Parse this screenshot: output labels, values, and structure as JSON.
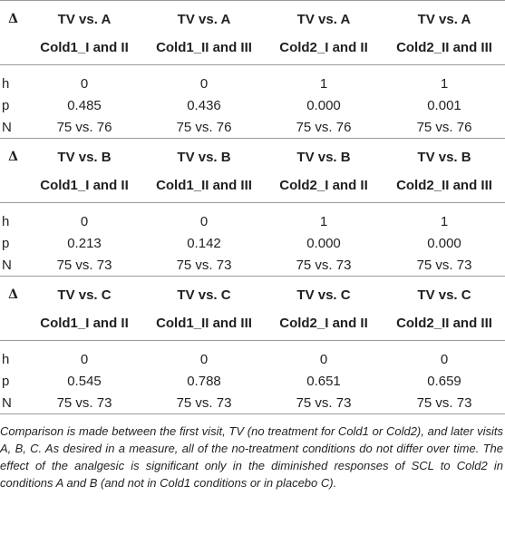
{
  "sections": [
    {
      "symbol": "Δ",
      "headers": [
        [
          "TV vs. A",
          "Cold1_I and II"
        ],
        [
          "TV vs. A",
          "Cold1_II and III"
        ],
        [
          "TV vs. A",
          "Cold2_I and II"
        ],
        [
          "TV vs. A",
          "Cold2_II and III"
        ]
      ],
      "rows": [
        {
          "label": "h",
          "values": [
            "0",
            "0",
            "1",
            "1"
          ]
        },
        {
          "label": "p",
          "values": [
            "0.485",
            "0.436",
            "0.000",
            "0.001"
          ]
        },
        {
          "label": "N",
          "values": [
            "75 vs. 76",
            "75 vs. 76",
            "75 vs. 76",
            "75 vs. 76"
          ]
        }
      ]
    },
    {
      "symbol": "Δ",
      "headers": [
        [
          "TV vs. B",
          "Cold1_I and II"
        ],
        [
          "TV vs. B",
          "Cold1_II and III"
        ],
        [
          "TV vs. B",
          "Cold2_I and II"
        ],
        [
          "TV vs. B",
          "Cold2_II and III"
        ]
      ],
      "rows": [
        {
          "label": "h",
          "values": [
            "0",
            "0",
            "1",
            "1"
          ]
        },
        {
          "label": "p",
          "values": [
            "0.213",
            "0.142",
            "0.000",
            "0.000"
          ]
        },
        {
          "label": "N",
          "values": [
            "75 vs. 73",
            "75 vs. 73",
            "75 vs. 73",
            "75 vs. 73"
          ]
        }
      ]
    },
    {
      "symbol": "Δ",
      "headers": [
        [
          "TV vs. C",
          "Cold1_I and II"
        ],
        [
          "TV vs. C",
          "Cold1_II and III"
        ],
        [
          "TV vs. C",
          "Cold2_I and II"
        ],
        [
          "TV vs. C",
          "Cold2_II and III"
        ]
      ],
      "rows": [
        {
          "label": "h",
          "values": [
            "0",
            "0",
            "0",
            "0"
          ]
        },
        {
          "label": "p",
          "values": [
            "0.545",
            "0.788",
            "0.651",
            "0.659"
          ]
        },
        {
          "label": "N",
          "values": [
            "75 vs. 73",
            "75 vs. 73",
            "75 vs. 73",
            "75 vs. 73"
          ]
        }
      ]
    }
  ],
  "footnote": "Comparison is made between the first visit, TV (no treatment for Cold1 or Cold2), and later visits A, B, C. As desired in a measure, all of the no-treatment conditions do not differ over time. The effect of the analgesic is significant only in the diminished responses of SCL to Cold2 in conditions A and B (and not in Cold1 conditions or in placebo C)."
}
